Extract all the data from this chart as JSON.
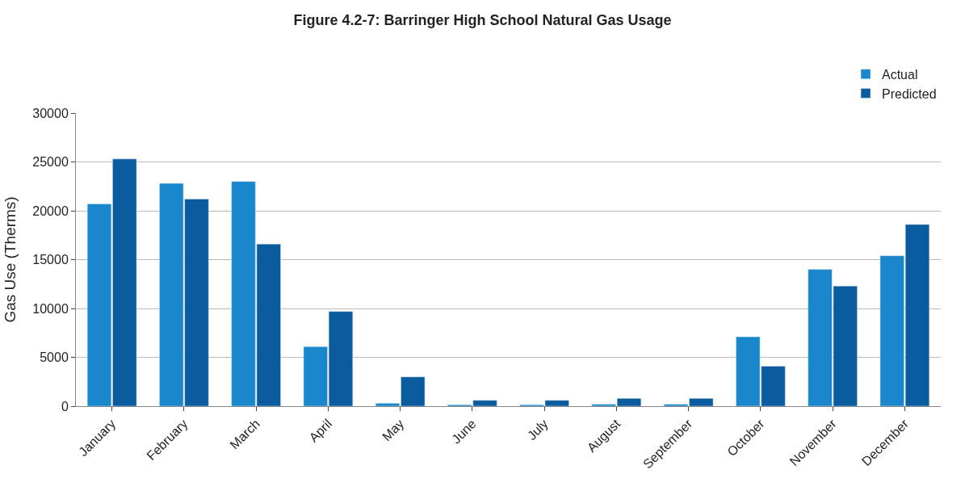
{
  "chart_data": {
    "type": "bar",
    "title": "Figure 4.2-7: Barringer High School Natural Gas Usage",
    "ylabel": "Gas Use (Therms)",
    "categories": [
      "January",
      "February",
      "March",
      "April",
      "May",
      "June",
      "July",
      "August",
      "September",
      "October",
      "November",
      "December"
    ],
    "series": [
      {
        "name": "Actual",
        "color": "#1a87cc",
        "values": [
          20700,
          22800,
          23000,
          6100,
          300,
          150,
          150,
          200,
          200,
          7100,
          14000,
          15400
        ]
      },
      {
        "name": "Predicted",
        "color": "#0b5c9e",
        "values": [
          25300,
          21200,
          16600,
          9700,
          3000,
          600,
          600,
          800,
          800,
          4100,
          12300,
          18600
        ]
      }
    ],
    "ylim": [
      0,
      30000
    ],
    "yticks": [
      0,
      5000,
      10000,
      15000,
      20000,
      25000,
      30000
    ],
    "grid": "y",
    "legend": "top right"
  }
}
